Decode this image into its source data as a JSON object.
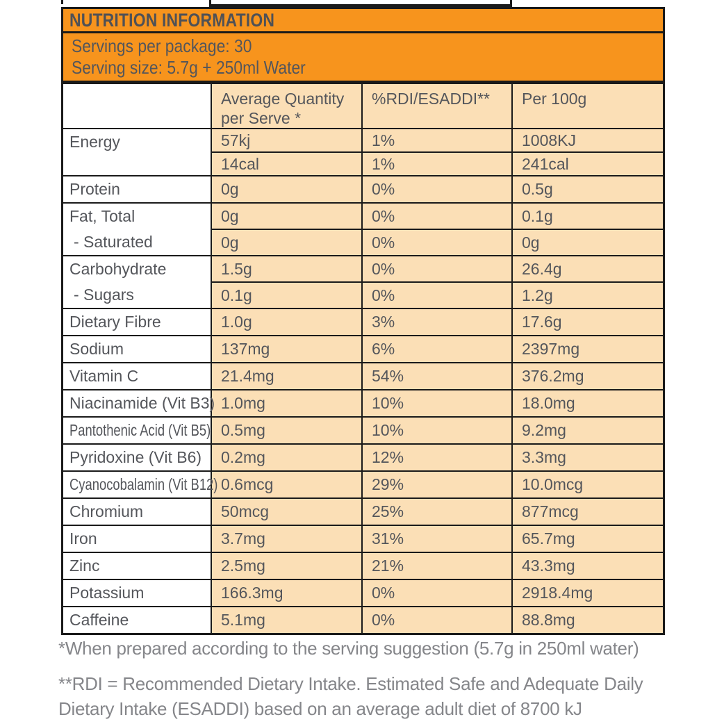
{
  "title": "NUTRITION INFORMATION",
  "serving_info": {
    "servings_per_package": "Servings per package: 30",
    "serving_size": "Serving size: 5.7g + 250ml Water"
  },
  "table": {
    "columns": [
      "",
      "Average Quantity\nper Serve *",
      "%RDI/ESADDI**",
      "Per 100g"
    ],
    "row_groups": [
      {
        "labels": [
          "Energy"
        ],
        "rows": [
          [
            "57kj",
            "1%",
            "1008KJ"
          ],
          [
            "14cal",
            "1%",
            "241cal"
          ]
        ]
      },
      {
        "labels": [
          "Protein"
        ],
        "rows": [
          [
            "0g",
            "0%",
            "0.5g"
          ]
        ]
      },
      {
        "labels": [
          "Fat, Total",
          "- Saturated"
        ],
        "rows": [
          [
            "0g",
            "0%",
            "0.1g"
          ],
          [
            "0g",
            "0%",
            "0g"
          ]
        ]
      },
      {
        "labels": [
          "Carbohydrate",
          "- Sugars"
        ],
        "rows": [
          [
            "1.5g",
            "0%",
            "26.4g"
          ],
          [
            "0.1g",
            "0%",
            "1.2g"
          ]
        ]
      },
      {
        "labels": [
          "Dietary Fibre"
        ],
        "rows": [
          [
            "1.0g",
            "3%",
            "17.6g"
          ]
        ]
      },
      {
        "labels": [
          "Sodium"
        ],
        "rows": [
          [
            "137mg",
            "6%",
            "2397mg"
          ]
        ]
      },
      {
        "labels": [
          "Vitamin C"
        ],
        "rows": [
          [
            "21.4mg",
            "54%",
            "376.2mg"
          ]
        ]
      },
      {
        "labels": [
          "Niacinamide (Vit B3)"
        ],
        "rows": [
          [
            "1.0mg",
            "10%",
            "18.0mg"
          ]
        ]
      },
      {
        "labels": [
          "Pantothenic Acid (Vit B5)"
        ],
        "condensed": true,
        "rows": [
          [
            "0.5mg",
            "10%",
            "9.2mg"
          ]
        ]
      },
      {
        "labels": [
          "Pyridoxine (Vit B6)"
        ],
        "rows": [
          [
            "0.2mg",
            "12%",
            "3.3mg"
          ]
        ]
      },
      {
        "labels": [
          "Cyanocobalamin (Vit B12)"
        ],
        "condensed": true,
        "rows": [
          [
            "0.6mcg",
            "29%",
            "10.0mcg"
          ]
        ]
      },
      {
        "labels": [
          "Chromium"
        ],
        "rows": [
          [
            "50mcg",
            "25%",
            "877mcg"
          ]
        ]
      },
      {
        "labels": [
          "Iron"
        ],
        "rows": [
          [
            "3.7mg",
            "31%",
            "65.7mg"
          ]
        ]
      },
      {
        "labels": [
          "Zinc"
        ],
        "rows": [
          [
            "2.5mg",
            "21%",
            "43.3mg"
          ]
        ]
      },
      {
        "labels": [
          "Potassium"
        ],
        "rows": [
          [
            "166.3mg",
            "0%",
            "2918.4mg"
          ]
        ]
      },
      {
        "labels": [
          "Caffeine"
        ],
        "rows": [
          [
            "5.1mg",
            "0%",
            "88.8mg"
          ]
        ]
      }
    ]
  },
  "footnotes": [
    "*When prepared according to the serving suggestion (5.7g in 250ml water)",
    "**RDI = Recommended Dietary Intake. Estimated Safe and Adequate Daily Dietary Intake (ESADDI) based on an average adult diet of 8700 kJ"
  ],
  "colors": {
    "accent_orange": "#F7941D",
    "cell_peach": "#FBDFB6",
    "border_black": "#1A1A1A",
    "text_dark": "#54565B",
    "footnote_gray": "#85868A"
  }
}
